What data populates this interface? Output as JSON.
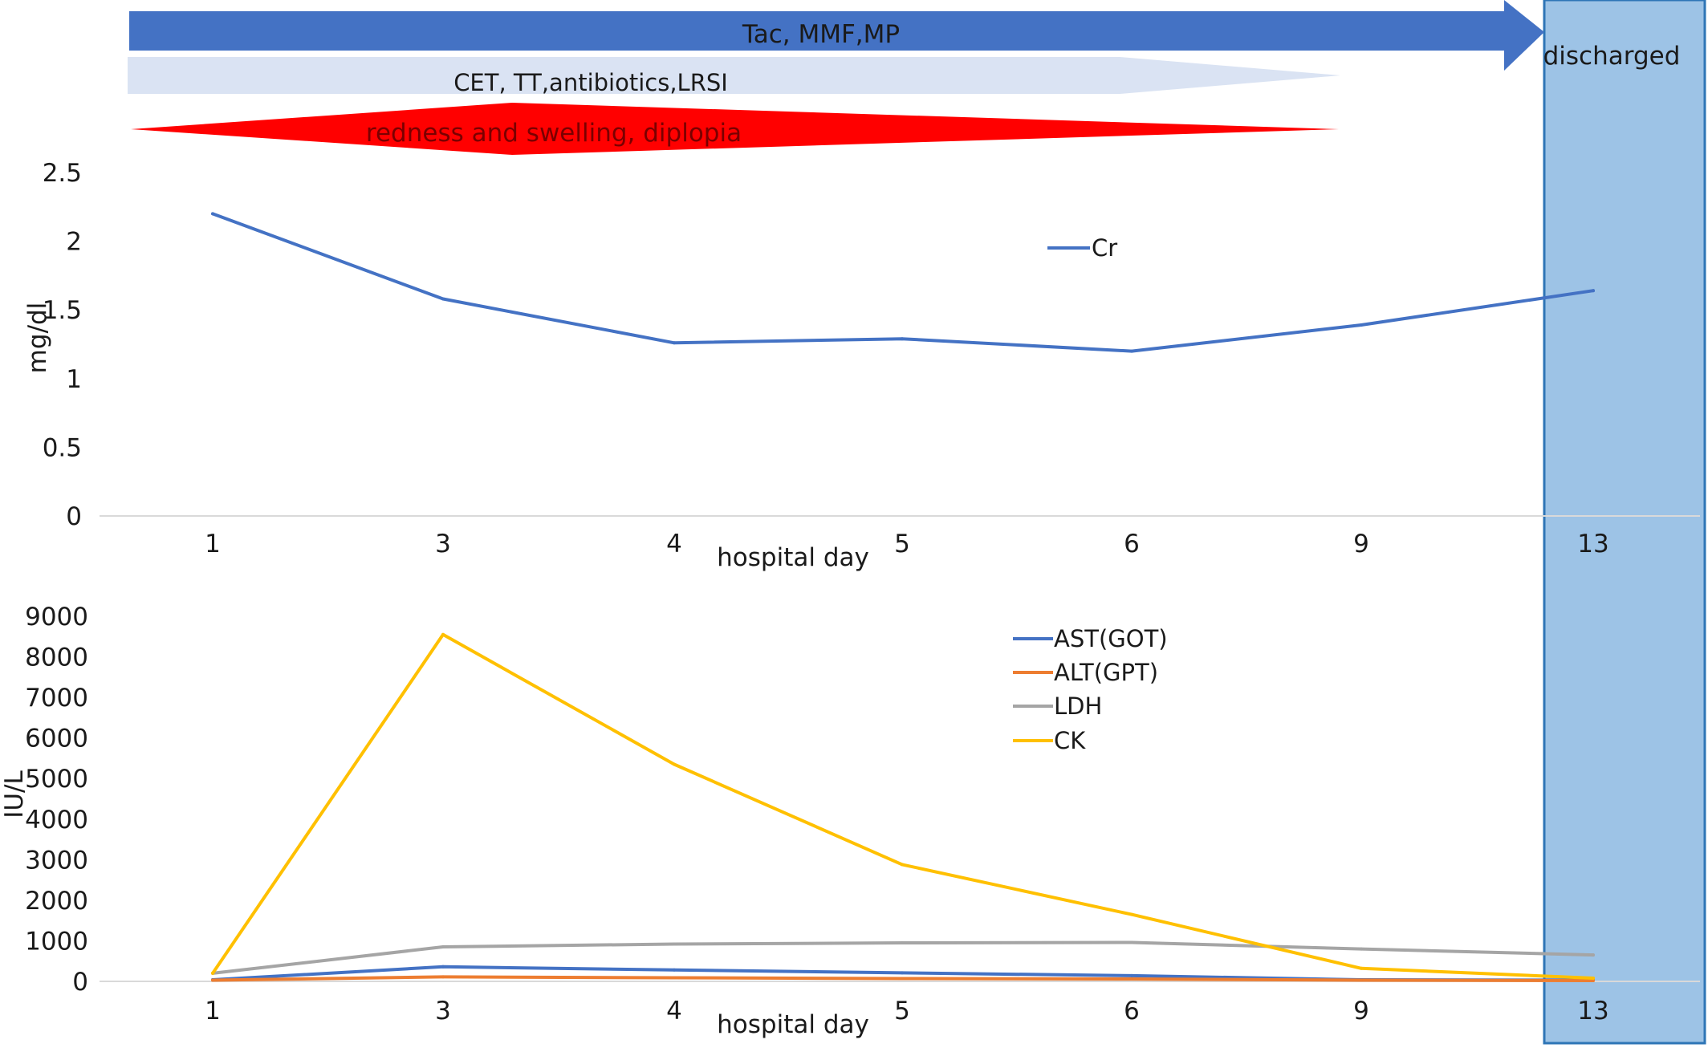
{
  "timeline": {
    "immunosuppression": {
      "label": "Tac, MMF,MP",
      "color": "#4472C4"
    },
    "treatment": {
      "label": "CET, TT,antibiotics,LRSI",
      "color": "#DAE3F3"
    },
    "symptoms": {
      "label": "redness and swelling, diplopia",
      "color": "#FF0000"
    },
    "discharge": {
      "label": "discharged",
      "color": "#9DC3E6"
    }
  },
  "chart_data": [
    {
      "type": "line",
      "title": "",
      "xlabel": "hospital day",
      "ylabel": "mg/dl",
      "categories": [
        "1",
        "3",
        "4",
        "5",
        "6",
        "9",
        "13"
      ],
      "yticks": [
        "0",
        "0.5",
        "1",
        "1.5",
        "2",
        "2.5"
      ],
      "ylim": [
        0,
        2.5
      ],
      "grid": false,
      "legend": "top-center",
      "series": [
        {
          "name": "Cr",
          "color": "#4472C4",
          "values": [
            2.2,
            1.58,
            1.26,
            1.29,
            1.2,
            1.39,
            1.64
          ]
        }
      ]
    },
    {
      "type": "line",
      "title": "",
      "xlabel": "hospital day",
      "ylabel": "IU/L",
      "categories": [
        "1",
        "3",
        "4",
        "5",
        "6",
        "9",
        "13"
      ],
      "yticks": [
        "0",
        "1000",
        "2000",
        "3000",
        "4000",
        "5000",
        "6000",
        "7000",
        "8000",
        "9000"
      ],
      "ylim": [
        0,
        9000
      ],
      "grid": false,
      "legend": "top-center",
      "series": [
        {
          "name": "AST(GOT)",
          "color": "#4472C4",
          "values": [
            40,
            360,
            280,
            210,
            140,
            40,
            30
          ]
        },
        {
          "name": "ALT(GPT)",
          "color": "#ED7D31",
          "values": [
            30,
            110,
            90,
            70,
            60,
            30,
            20
          ]
        },
        {
          "name": "LDH",
          "color": "#A5A5A5",
          "values": [
            200,
            850,
            920,
            950,
            960,
            800,
            650
          ]
        },
        {
          "name": "CK",
          "color": "#FFC000",
          "values": [
            200,
            8550,
            5350,
            2880,
            1650,
            320,
            80
          ]
        }
      ]
    }
  ]
}
